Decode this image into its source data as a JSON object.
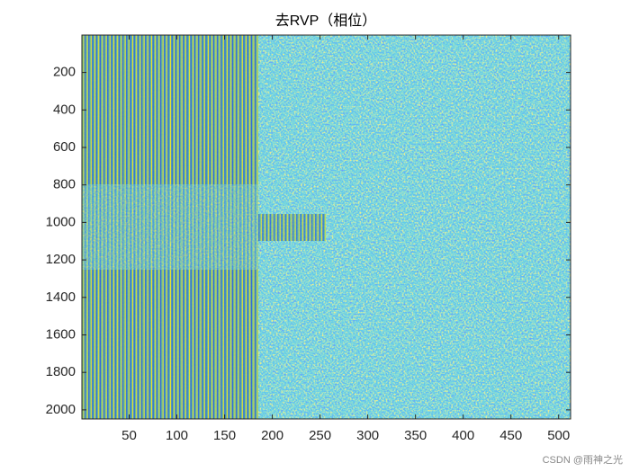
{
  "chart_data": {
    "type": "image",
    "title": "去RVP（相位）",
    "xlim": [
      0.5,
      512.5
    ],
    "xticks": [
      50,
      100,
      150,
      200,
      250,
      300,
      350,
      400,
      450,
      500
    ],
    "ylim": [
      0.5,
      2048.5
    ],
    "yticks": [
      200,
      400,
      600,
      800,
      1000,
      1200,
      1400,
      1600,
      1800,
      2000
    ],
    "y_reversed": true,
    "colormap": "parula",
    "watermark": "CSDN @雨神之光"
  }
}
